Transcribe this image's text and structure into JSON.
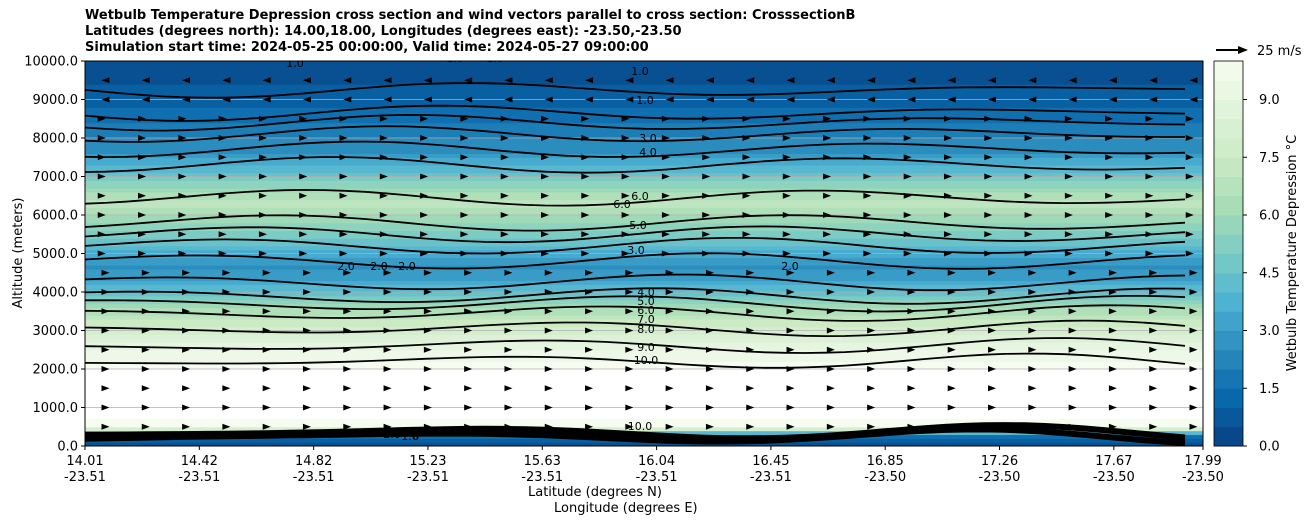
{
  "chart_data": {
    "type": "contour",
    "title_lines": [
      "Wetbulb Temperature Depression cross section and wind vectors parallel to cross section: CrosssectionB",
      "Latitudes (degrees north): 14.00,18.00, Longitudes (degrees east): -23.50,-23.50",
      "Simulation start time: 2024-05-25 00:00:00, Valid time: 2024-05-27 09:00:00"
    ],
    "xlabel_lines": [
      "Latitude (degrees N)",
      "Longitude (degrees E)"
    ],
    "ylabel": "Altitude (meters)",
    "x_ticks_lat": [
      "14.01",
      "14.42",
      "14.82",
      "15.23",
      "15.63",
      "16.04",
      "16.45",
      "16.85",
      "17.26",
      "17.67",
      "17.99"
    ],
    "x_ticks_lon": [
      "-23.51",
      "-23.51",
      "-23.51",
      "-23.51",
      "-23.51",
      "-23.51",
      "-23.51",
      "-23.50",
      "-23.50",
      "-23.50",
      "-23.50"
    ],
    "y_ticks": [
      "0.0",
      "1000.0",
      "2000.0",
      "3000.0",
      "4000.0",
      "5000.0",
      "6000.0",
      "7000.0",
      "8000.0",
      "9000.0",
      "10000.0"
    ],
    "ylim": [
      0,
      10000
    ],
    "colorbar": {
      "label": "Wetbulb Temperature Depression °C",
      "ticks": [
        "0.0",
        "1.5",
        "3.0",
        "4.5",
        "6.0",
        "7.5",
        "9.0"
      ],
      "range": [
        0,
        10
      ],
      "colormap": "GnBu_r"
    },
    "quiver_key": "25 m/s",
    "contour_labels": [
      "1.0",
      "1.0",
      "1.0",
      "1.0",
      "1.0",
      "3.0",
      "4.0",
      "6.0",
      "6.0",
      "5.0",
      "3.0",
      "2.0",
      "2.0",
      "2.0",
      "2.0",
      "4.0",
      "5.0",
      "6.0",
      "7.0",
      "8.0",
      "9.0",
      "10.0",
      "10.0",
      "2.0",
      "1.0",
      "0"
    ],
    "profile_altitudes": [
      0,
      300,
      500,
      1000,
      2000,
      2300,
      2600,
      3000,
      3500,
      4000,
      4300,
      4700,
      5300,
      6000,
      6300,
      6800,
      7200,
      7600,
      8000,
      8500,
      9000,
      10000
    ],
    "profile_values": [
      0.3,
      2.0,
      10.0,
      10.0,
      10.0,
      9.5,
      9.0,
      8.0,
      6.5,
      4.2,
      3.3,
      2.6,
      4.5,
      6.3,
      7.0,
      5.5,
      4.0,
      2.8,
      2.2,
      1.6,
      0.9,
      0.5
    ]
  },
  "grid": true
}
